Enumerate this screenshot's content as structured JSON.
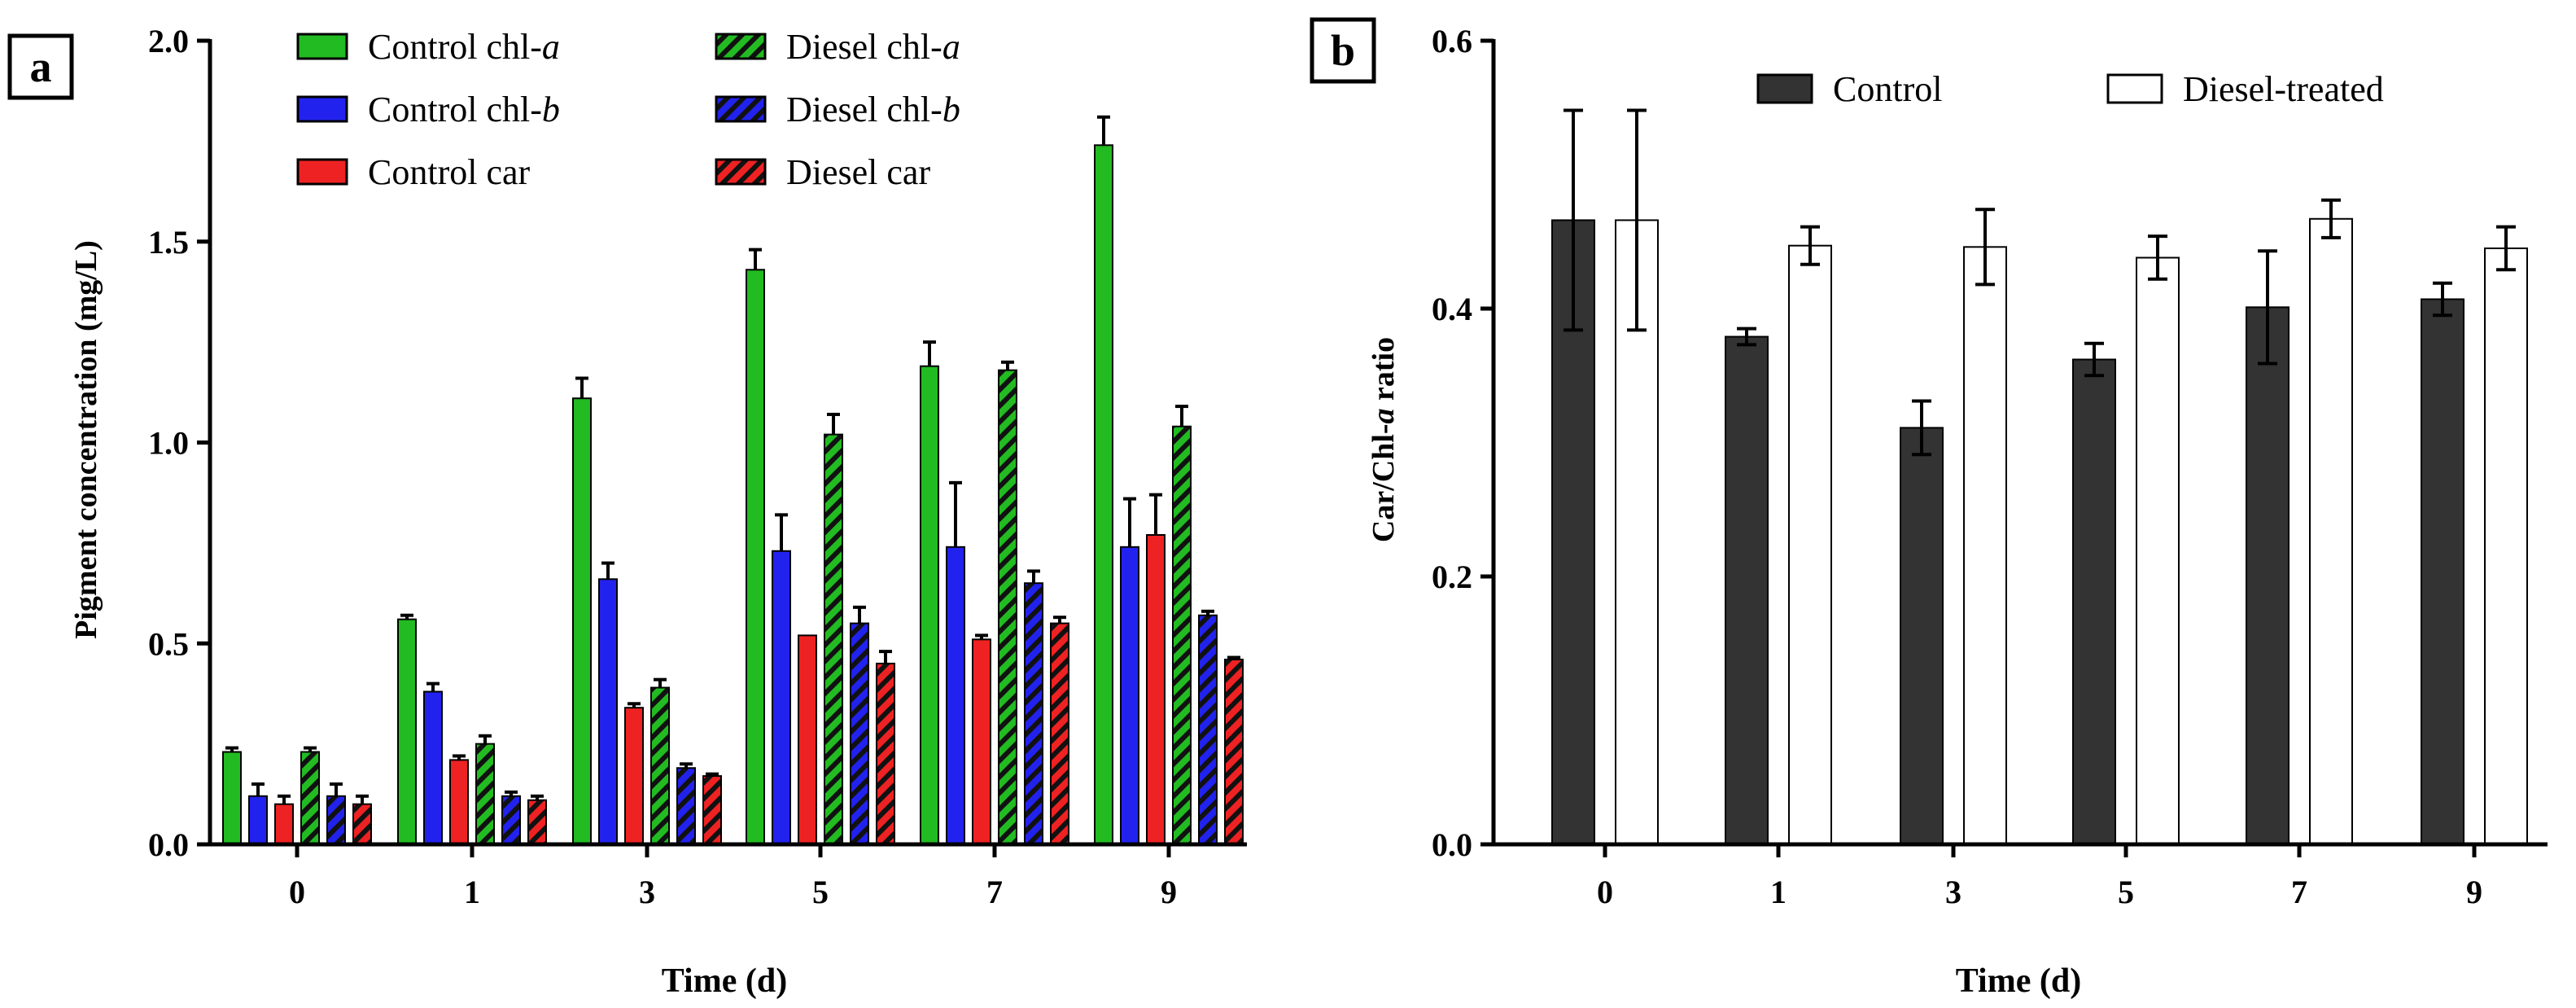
{
  "chart_data": [
    {
      "panel_label": "a",
      "type": "bar",
      "ylabel": "Pigment concentration (mg/L)",
      "xlabel": "Time (d)",
      "ylim": [
        0,
        2.0
      ],
      "yticks": [
        "0.0",
        "0.5",
        "1.0",
        "1.5",
        "2.0"
      ],
      "categories": [
        "0",
        "1",
        "3",
        "5",
        "7",
        "9"
      ],
      "series": [
        {
          "name": "Control chl-",
          "name_italic": "a",
          "color": "#22bb22",
          "hatch": false,
          "values": [
            0.23,
            0.56,
            1.11,
            1.43,
            1.19,
            1.74
          ],
          "errors": [
            0.01,
            0.01,
            0.05,
            0.05,
            0.06,
            0.07
          ]
        },
        {
          "name": "Control chl-",
          "name_italic": "b",
          "color": "#2222ee",
          "hatch": false,
          "values": [
            0.12,
            0.38,
            0.66,
            0.73,
            0.74,
            0.74
          ],
          "errors": [
            0.03,
            0.02,
            0.04,
            0.09,
            0.16,
            0.12
          ]
        },
        {
          "name": "Control car",
          "name_italic": "",
          "color": "#ee2222",
          "hatch": false,
          "values": [
            0.1,
            0.21,
            0.34,
            0.52,
            0.51,
            0.77
          ],
          "errors": [
            0.02,
            0.01,
            0.01,
            0.0,
            0.01,
            0.1
          ]
        },
        {
          "name": "Diesel chl-",
          "name_italic": "a",
          "color": "#22bb22",
          "hatch": true,
          "values": [
            0.23,
            0.25,
            0.39,
            1.02,
            1.18,
            1.04
          ],
          "errors": [
            0.01,
            0.02,
            0.02,
            0.05,
            0.02,
            0.05
          ]
        },
        {
          "name": "Diesel chl-",
          "name_italic": "b",
          "color": "#2222ee",
          "hatch": true,
          "values": [
            0.12,
            0.12,
            0.19,
            0.55,
            0.65,
            0.57
          ],
          "errors": [
            0.03,
            0.01,
            0.01,
            0.04,
            0.03,
            0.01
          ]
        },
        {
          "name": "Diesel car",
          "name_italic": "",
          "color": "#ee2222",
          "hatch": true,
          "values": [
            0.1,
            0.11,
            0.17,
            0.45,
            0.55,
            0.46
          ],
          "errors": [
            0.02,
            0.01,
            0.005,
            0.03,
            0.015,
            0.005
          ]
        }
      ]
    },
    {
      "panel_label": "b",
      "type": "bar",
      "ylabel": "Car/Chl-",
      "ylabel_italic": "a",
      "ylabel_suffix": " ratio",
      "xlabel": "Time (d)",
      "ylim": [
        0,
        0.6
      ],
      "yticks": [
        "0.0",
        "0.2",
        "0.4",
        "0.6"
      ],
      "categories": [
        "0",
        "1",
        "3",
        "5",
        "7",
        "9"
      ],
      "series": [
        {
          "name": "Control",
          "color": "#333333",
          "hatch": false,
          "values": [
            0.466,
            0.379,
            0.311,
            0.362,
            0.401,
            0.407
          ],
          "errors": [
            0.082,
            0.006,
            0.02,
            0.012,
            0.042,
            0.012
          ]
        },
        {
          "name": "Diesel-treated",
          "color": "#ffffff",
          "hatch": false,
          "values": [
            0.466,
            0.447,
            0.446,
            0.438,
            0.467,
            0.445
          ],
          "errors": [
            0.082,
            0.014,
            0.028,
            0.016,
            0.014,
            0.016
          ]
        }
      ]
    }
  ]
}
